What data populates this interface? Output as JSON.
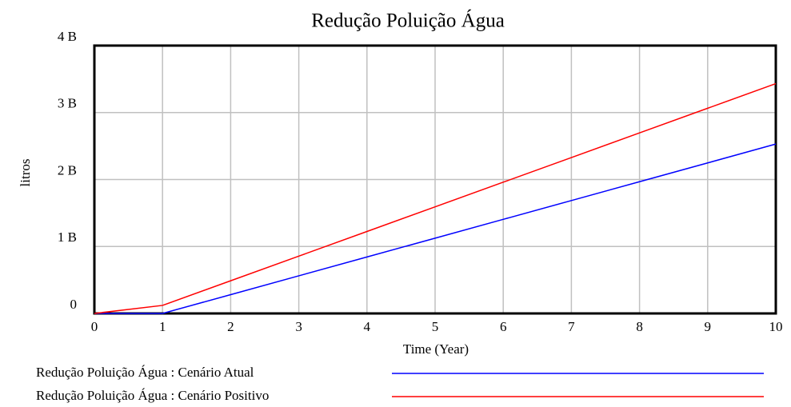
{
  "chart_data": {
    "type": "line",
    "title": "Redução Poluição Água",
    "x_label": "Time (Year)",
    "y_label": "litros",
    "x": [
      0,
      1,
      2,
      3,
      4,
      5,
      6,
      7,
      8,
      9,
      10
    ],
    "series": [
      {
        "name": "Redução Poluição Água : Cenário Atual",
        "color": "#0000ff",
        "values": [
          0,
          0,
          281000000,
          562000000,
          843000000,
          1124000000,
          1405000000,
          1686000000,
          1967000000,
          2248000000,
          2530000000
        ]
      },
      {
        "name": "Redução Poluição Água : Cenário Positivo",
        "color": "#ff0000",
        "values": [
          0,
          120000000,
          488000000,
          856000000,
          1224000000,
          1592000000,
          1960000000,
          2328000000,
          2696000000,
          3064000000,
          3432000000
        ]
      }
    ],
    "xlim": [
      0,
      10
    ],
    "xticks": [
      0,
      1,
      2,
      3,
      4,
      5,
      6,
      7,
      8,
      9,
      10
    ],
    "ylim": [
      0,
      4000000000
    ],
    "yticks": [
      0,
      {
        "value": 1000000000,
        "label": "1 B"
      },
      {
        "value": 2000000000,
        "label": "2 B"
      },
      {
        "value": 3000000000,
        "label": "3 B"
      },
      {
        "value": 4000000000,
        "label": "4 B"
      }
    ],
    "grid": true,
    "legend": "bottom"
  }
}
